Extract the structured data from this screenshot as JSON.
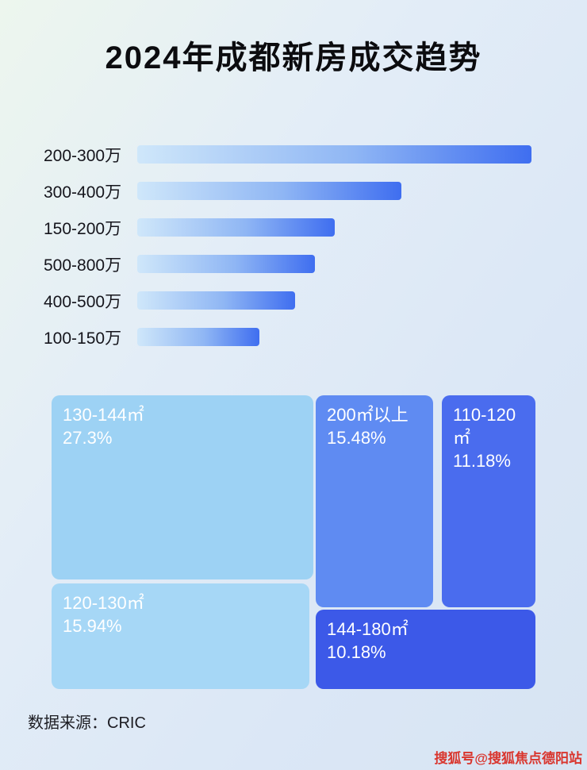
{
  "title": "2024年成都新房成交趋势",
  "chart_data": [
    {
      "type": "bar",
      "title": "2024年成都新房成交趋势",
      "orientation": "horizontal",
      "categories": [
        "200-300万",
        "300-400万",
        "150-200万",
        "500-800万",
        "400-500万",
        "100-150万"
      ],
      "values": [
        100,
        67,
        50,
        45,
        40,
        31
      ],
      "value_note": "no axis shown; values are relative bar lengths in percent of longest bar",
      "xlabel": "",
      "ylabel": "",
      "grid": false,
      "legend": false,
      "bar_gradient": [
        "#cfe7fa",
        "#3f6ef0"
      ]
    },
    {
      "type": "treemap",
      "items": [
        {
          "label": "130-144㎡",
          "value": 27.3,
          "value_label": "27.3%",
          "color": "#9dd2f4"
        },
        {
          "label": "200㎡以上",
          "value": 15.48,
          "value_label": "15.48%",
          "color": "#5f8bf2"
        },
        {
          "label": "110-120㎡",
          "value": 11.18,
          "value_label": "11.18%",
          "color": "#4a6cee"
        },
        {
          "label": "120-130㎡",
          "value": 15.94,
          "value_label": "15.94%",
          "color": "#a6d7f6"
        },
        {
          "label": "144-180㎡",
          "value": 10.18,
          "value_label": "10.18%",
          "color": "#3c59e8"
        }
      ]
    }
  ],
  "footer": {
    "source": "数据来源：CRIC"
  },
  "watermark": "搜狐号@搜狐焦点德阳站"
}
